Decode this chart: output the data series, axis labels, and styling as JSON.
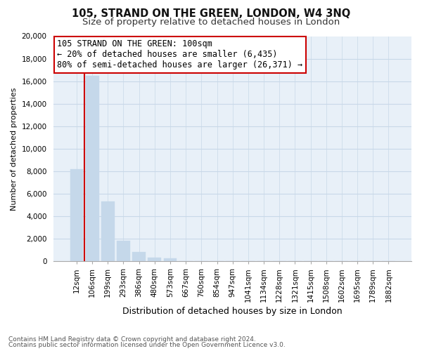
{
  "title": "105, STRAND ON THE GREEN, LONDON, W4 3NQ",
  "subtitle": "Size of property relative to detached houses in London",
  "xlabel": "Distribution of detached houses by size in London",
  "ylabel": "Number of detached properties",
  "bar_labels": [
    "12sqm",
    "106sqm",
    "199sqm",
    "293sqm",
    "386sqm",
    "480sqm",
    "573sqm",
    "667sqm",
    "760sqm",
    "854sqm",
    "947sqm",
    "1041sqm",
    "1134sqm",
    "1228sqm",
    "1321sqm",
    "1415sqm",
    "1508sqm",
    "1602sqm",
    "1695sqm",
    "1789sqm",
    "1882sqm"
  ],
  "bar_heights": [
    8200,
    16500,
    5300,
    1800,
    800,
    300,
    250,
    0,
    0,
    0,
    0,
    0,
    0,
    0,
    0,
    0,
    0,
    0,
    0,
    0,
    0
  ],
  "bar_color": "#c5d8ea",
  "annotation_title": "105 STRAND ON THE GREEN: 100sqm",
  "annotation_line1": "← 20% of detached houses are smaller (6,435)",
  "annotation_line2": "80% of semi-detached houses are larger (26,371) →",
  "ylim": [
    0,
    20000
  ],
  "yticks": [
    0,
    2000,
    4000,
    6000,
    8000,
    10000,
    12000,
    14000,
    16000,
    18000,
    20000
  ],
  "footnote1": "Contains HM Land Registry data © Crown copyright and database right 2024.",
  "footnote2": "Contains public sector information licensed under the Open Government Licence v3.0.",
  "background_color": "#ffffff",
  "plot_bg_color": "#e8f0f8",
  "grid_color": "#c8d8e8",
  "annotation_box_color": "#ffffff",
  "annotation_box_edgecolor": "#cc0000",
  "red_line_color": "#cc0000",
  "title_fontsize": 10.5,
  "subtitle_fontsize": 9.5,
  "ylabel_fontsize": 8,
  "xlabel_fontsize": 9,
  "tick_fontsize": 7.5,
  "footnote_fontsize": 6.5,
  "annotation_fontsize": 8.5
}
